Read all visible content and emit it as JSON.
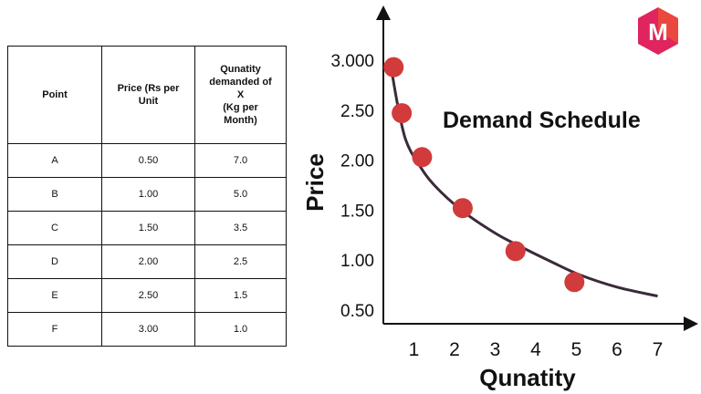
{
  "table": {
    "headers": [
      "Point",
      "Price (Rs per Unit",
      "Qunatity demanded of X (Kg per Month)"
    ],
    "header_lines": {
      "price": [
        "Price (Rs per",
        "Unit"
      ],
      "quantity": [
        "Qunatity",
        "demanded of",
        "X",
        "(Kg per",
        "Month)"
      ]
    },
    "rows": [
      [
        "A",
        "0.50",
        "7.0"
      ],
      [
        "B",
        "1.00",
        "5.0"
      ],
      [
        "C",
        "1.50",
        "3.5"
      ],
      [
        "D",
        "2.00",
        "2.5"
      ],
      [
        "E",
        "2.50",
        "1.5"
      ],
      [
        "F",
        "3.00",
        "1.0"
      ]
    ]
  },
  "logo": {
    "letter": "M",
    "colors": [
      "#e0245e",
      "#f26522",
      "#8e1a4f"
    ]
  },
  "chart_data": {
    "type": "line",
    "title": "Demand Schedule",
    "xlabel": "Qunatity",
    "ylabel": "Price",
    "x_ticks": [
      "1",
      "2",
      "3",
      "4",
      "5",
      "6",
      "7"
    ],
    "y_ticks": [
      "0.50",
      "1.00",
      "1.50",
      "2.00",
      "2.50",
      "3.000"
    ],
    "xlim": [
      0.5,
      7.5
    ],
    "ylim": [
      0.5,
      3.0
    ],
    "curve": {
      "x": [
        0.4,
        0.6,
        0.8,
        1.1,
        1.5,
        2.2,
        3.0,
        3.6,
        4.4,
        5.1,
        6.0,
        7.0
      ],
      "y": [
        3.02,
        2.55,
        2.2,
        1.97,
        1.75,
        1.49,
        1.27,
        1.14,
        0.98,
        0.85,
        0.73,
        0.64
      ]
    },
    "points": {
      "x": [
        0.5,
        0.7,
        1.2,
        2.2,
        3.5,
        4.95
      ],
      "y": [
        2.93,
        2.47,
        2.03,
        1.52,
        1.09,
        0.78
      ]
    },
    "point_color": "#d13b3b",
    "curve_color": "#3a2a3a"
  }
}
